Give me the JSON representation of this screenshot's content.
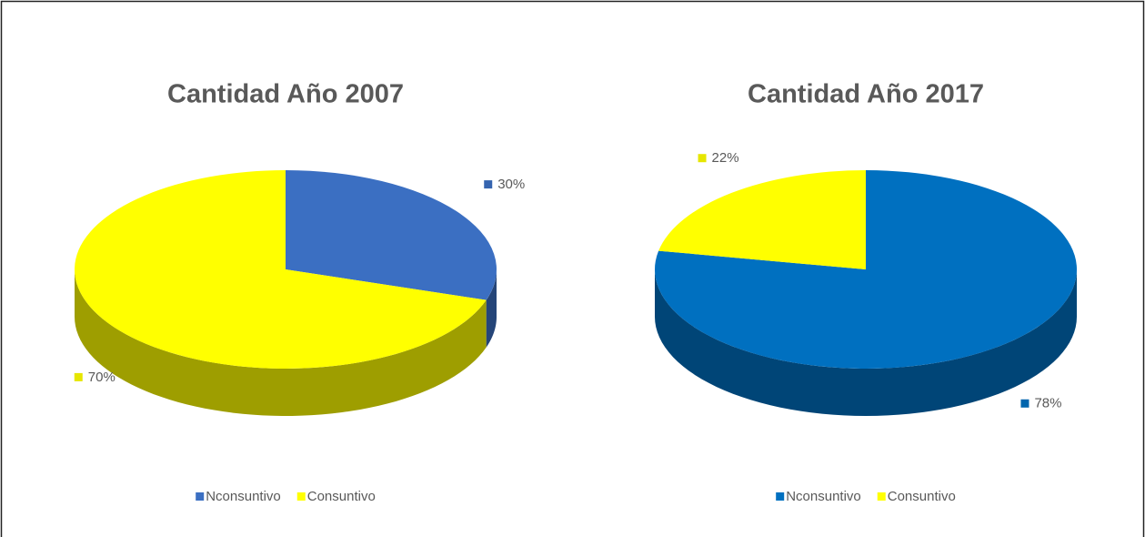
{
  "chart_data": [
    {
      "type": "pie",
      "title": "Cantidad Año 2007",
      "categories": [
        "Nconsuntivo",
        "Consuntivo"
      ],
      "values": [
        30,
        70
      ],
      "value_labels": [
        "30%",
        "70%"
      ],
      "colors": [
        "#3b6fc2",
        "#ffff00"
      ]
    },
    {
      "type": "pie",
      "title": "Cantidad Año 2017",
      "categories": [
        "Nconsuntivo",
        "Consuntivo"
      ],
      "values": [
        78,
        22
      ],
      "value_labels": [
        "78%",
        "22%"
      ],
      "colors": [
        "#0070c0",
        "#ffff00"
      ]
    }
  ]
}
